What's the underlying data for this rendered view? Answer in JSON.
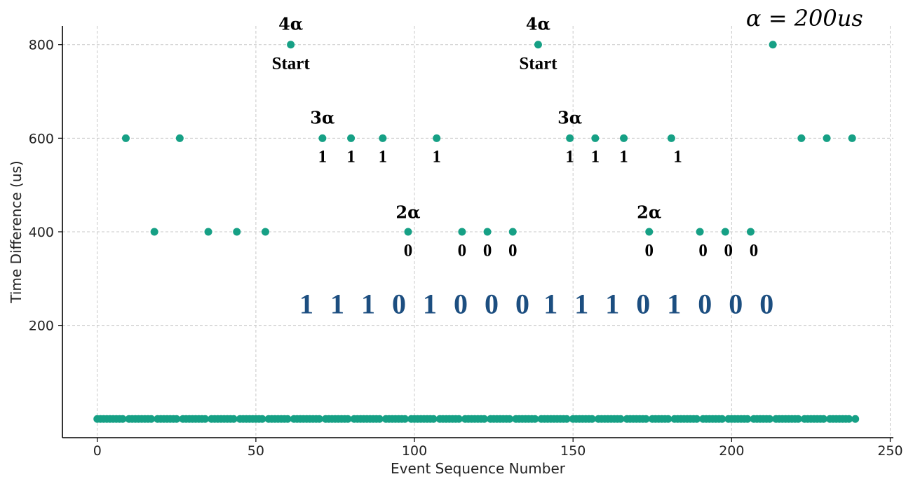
{
  "chart_data": {
    "type": "scatter",
    "xlabel": "Event Sequence Number",
    "ylabel": "Time Difference (us)",
    "xlim": [
      -11,
      251
    ],
    "ylim": [
      -40,
      840
    ],
    "xticks": [
      0,
      50,
      100,
      150,
      200,
      250
    ],
    "yticks": [
      200,
      400,
      600,
      800
    ],
    "grid": true,
    "point_color": "#16a085",
    "baseline": {
      "x_start": 0,
      "x_end": 239,
      "y": 0
    },
    "points": [
      {
        "x": 9,
        "y": 600
      },
      {
        "x": 18,
        "y": 400
      },
      {
        "x": 26,
        "y": 600
      },
      {
        "x": 35,
        "y": 400
      },
      {
        "x": 44,
        "y": 400
      },
      {
        "x": 53,
        "y": 400
      },
      {
        "x": 61,
        "y": 800
      },
      {
        "x": 71,
        "y": 600
      },
      {
        "x": 80,
        "y": 600
      },
      {
        "x": 90,
        "y": 600
      },
      {
        "x": 98,
        "y": 400
      },
      {
        "x": 107,
        "y": 600
      },
      {
        "x": 115,
        "y": 400
      },
      {
        "x": 123,
        "y": 400
      },
      {
        "x": 131,
        "y": 400
      },
      {
        "x": 139,
        "y": 800
      },
      {
        "x": 149,
        "y": 600
      },
      {
        "x": 157,
        "y": 600
      },
      {
        "x": 166,
        "y": 600
      },
      {
        "x": 174,
        "y": 400
      },
      {
        "x": 181,
        "y": 600
      },
      {
        "x": 190,
        "y": 400
      },
      {
        "x": 198,
        "y": 400
      },
      {
        "x": 206,
        "y": 400
      },
      {
        "x": 213,
        "y": 800
      },
      {
        "x": 222,
        "y": 600
      },
      {
        "x": 230,
        "y": 600
      },
      {
        "x": 238,
        "y": 600
      }
    ],
    "annotations": [
      {
        "text": "4α",
        "x": 61,
        "y": 832,
        "style": "greek"
      },
      {
        "text": "Start",
        "x": 61,
        "y": 748,
        "style": "small"
      },
      {
        "text": "4α",
        "x": 139,
        "y": 832,
        "style": "greek"
      },
      {
        "text": "Start",
        "x": 139,
        "y": 748,
        "style": "small"
      },
      {
        "text": "3α",
        "x": 71,
        "y": 631,
        "style": "greek"
      },
      {
        "text": "1",
        "x": 71,
        "y": 549,
        "style": "small"
      },
      {
        "text": "1",
        "x": 80,
        "y": 549,
        "style": "small"
      },
      {
        "text": "1",
        "x": 90,
        "y": 549,
        "style": "small"
      },
      {
        "text": "1",
        "x": 107,
        "y": 549,
        "style": "small"
      },
      {
        "text": "3α",
        "x": 149,
        "y": 631,
        "style": "greek"
      },
      {
        "text": "1",
        "x": 149,
        "y": 549,
        "style": "small"
      },
      {
        "text": "1",
        "x": 157,
        "y": 549,
        "style": "small"
      },
      {
        "text": "1",
        "x": 166,
        "y": 549,
        "style": "small"
      },
      {
        "text": "1",
        "x": 183,
        "y": 549,
        "style": "small"
      },
      {
        "text": "2α",
        "x": 98,
        "y": 429,
        "style": "greek"
      },
      {
        "text": "0",
        "x": 98,
        "y": 348,
        "style": "small"
      },
      {
        "text": "0",
        "x": 115,
        "y": 348,
        "style": "small"
      },
      {
        "text": "0",
        "x": 123,
        "y": 348,
        "style": "small"
      },
      {
        "text": "0",
        "x": 131,
        "y": 348,
        "style": "small"
      },
      {
        "text": "2α",
        "x": 174,
        "y": 429,
        "style": "greek"
      },
      {
        "text": "0",
        "x": 174,
        "y": 348,
        "style": "small"
      },
      {
        "text": "0",
        "x": 191,
        "y": 348,
        "style": "small"
      },
      {
        "text": "0",
        "x": 199,
        "y": 348,
        "style": "small"
      },
      {
        "text": "0",
        "x": 207,
        "y": 348,
        "style": "small"
      },
      {
        "text": "1 1 1 0 1 0 0 0",
        "x": 100,
        "y": 226,
        "style": "bits"
      },
      {
        "text": "1 1 1 0 1 0 0 0",
        "x": 177,
        "y": 226,
        "style": "bits"
      },
      {
        "text": "α = 200us",
        "x": 223,
        "y": 840,
        "style": "alpha"
      }
    ]
  }
}
